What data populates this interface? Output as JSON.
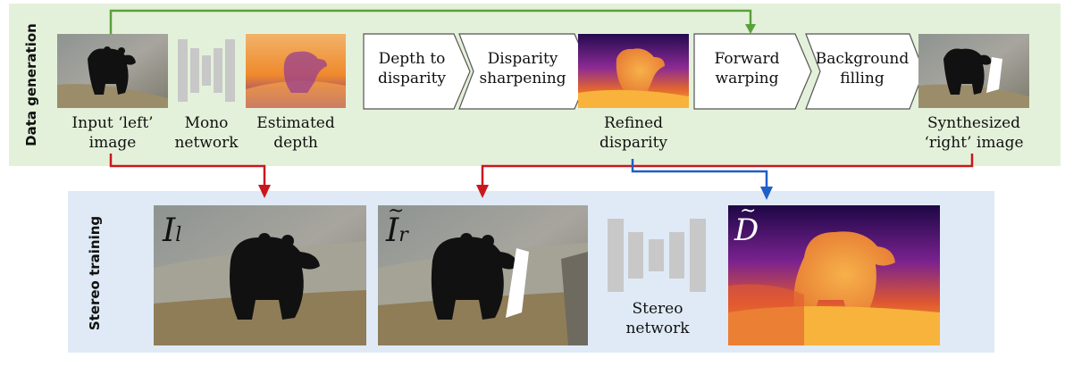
{
  "sections": {
    "generation_label": "Data generation",
    "training_label": "Stereo training"
  },
  "captions": {
    "input_left": "Input ‘left’\nimage",
    "mono_network": "Mono\nnetwork",
    "estimated_depth": "Estimated\ndepth",
    "refined_disparity": "Refined\ndisparity",
    "synth_right": "Synthesized\n‘right’ image",
    "stereo_network": "Stereo\nnetwork"
  },
  "steps": {
    "depth_to_disparity": "Depth to\ndisparity",
    "disparity_sharpening": "Disparity\nsharpening",
    "forward_warping": "Forward\nwarping",
    "background_filling": "Background\nfilling"
  },
  "symbols": {
    "left_image": "I",
    "left_sub": "l",
    "right_image": "I",
    "right_sub": "r",
    "disparity": "D"
  },
  "colors": {
    "generation_bg": "#e4f1da",
    "training_bg": "#dfeaf6",
    "arrow_green": "#5aa03b",
    "arrow_red": "#c9171e",
    "arrow_blue": "#1f5fc8",
    "network_gray": "#c8c8c8"
  },
  "icons": {
    "mono_network": "encoder-decoder-network-icon",
    "stereo_network": "encoder-decoder-network-icon"
  }
}
